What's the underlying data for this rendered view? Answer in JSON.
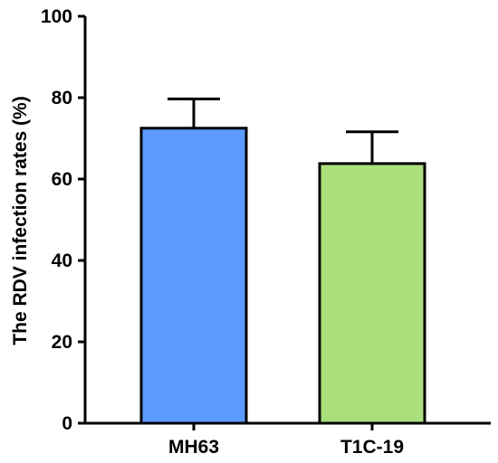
{
  "chart_data": {
    "type": "bar",
    "title": "",
    "xlabel": "",
    "ylabel": "The RDV infection rates (%)",
    "ylim": [
      0,
      100
    ],
    "yticks": [
      0,
      20,
      40,
      60,
      80,
      100
    ],
    "categories": [
      "MH63",
      "T1C-19"
    ],
    "values": [
      72.5,
      63.8
    ],
    "errors": [
      7.2,
      7.8
    ],
    "colors": [
      "#5b9bff",
      "#aadf7c"
    ],
    "grid": false,
    "legend": "none"
  }
}
